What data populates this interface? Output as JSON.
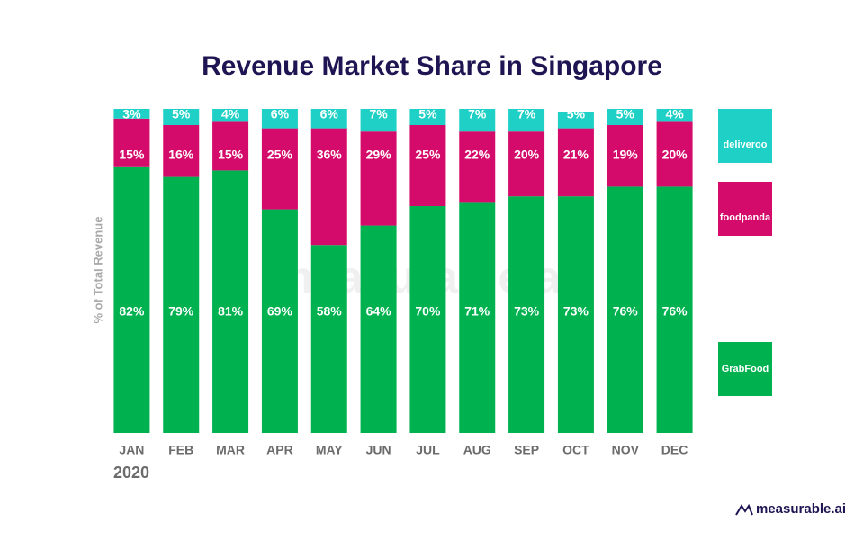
{
  "chart_data": {
    "type": "stacked_bar",
    "title": "Revenue Market Share in Singapore",
    "y_label": "% of Total Revenue",
    "year_label": "2020",
    "watermark": "measurable.ai",
    "footer": "measurable.ai",
    "categories": [
      "JAN",
      "FEB",
      "MAR",
      "APR",
      "MAY",
      "JUN",
      "JUL",
      "AUG",
      "SEP",
      "OCT",
      "NOV",
      "DEC"
    ],
    "ylim": [
      0,
      100
    ],
    "legend": "right",
    "series": [
      {
        "name": "GrabFood",
        "color": "#00b14f",
        "values": [
          82,
          79,
          81,
          69,
          58,
          64,
          70,
          71,
          73,
          73,
          76,
          76
        ],
        "value_labels": [
          "82%",
          "79%",
          "81%",
          "69%",
          "58%",
          "64%",
          "70%",
          "71%",
          "73%",
          "73%",
          "76%",
          "76%"
        ]
      },
      {
        "name": "foodpanda",
        "color": "#d40b6a",
        "values": [
          15,
          16,
          15,
          25,
          36,
          29,
          25,
          22,
          20,
          21,
          19,
          20
        ],
        "value_labels": [
          "15%",
          "16%",
          "15%",
          "25%",
          "36%",
          "29%",
          "25%",
          "22%",
          "20%",
          "21%",
          "19%",
          "20%"
        ]
      },
      {
        "name": "deliveroo",
        "color": "#1fd0c6",
        "values": [
          3,
          5,
          4,
          6,
          6,
          7,
          5,
          7,
          7,
          5,
          5,
          4
        ],
        "value_labels": [
          "3%",
          "5%",
          "4%",
          "6%",
          "6%",
          "7%",
          "5%",
          "7%",
          "7%",
          "5%",
          "5%",
          "4%"
        ]
      }
    ]
  }
}
